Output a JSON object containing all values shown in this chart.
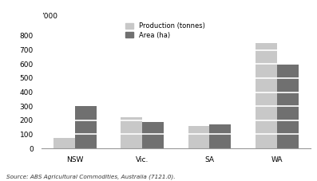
{
  "categories": [
    "NSW",
    "Vic.",
    "SA",
    "WA"
  ],
  "production": [
    75,
    220,
    160,
    750
  ],
  "area": [
    300,
    190,
    170,
    595
  ],
  "production_color": "#c8c8c8",
  "area_color": "#707070",
  "ylabel": "’000",
  "ylim": [
    0,
    900
  ],
  "yticks": [
    0,
    100,
    200,
    300,
    400,
    500,
    600,
    700,
    800
  ],
  "legend_labels": [
    "Production (tonnes)",
    "Area (ha)"
  ],
  "source_text": "Source: ABS Agricultural Commodities, Australia (7121.0).",
  "bar_width": 0.32,
  "background_color": "#ffffff",
  "hline_color": "#ffffff",
  "hline_interval": 100
}
